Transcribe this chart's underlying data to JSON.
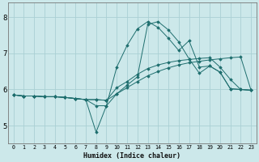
{
  "xlabel": "Humidex (Indice chaleur)",
  "bg_color": "#cce8ea",
  "grid_color": "#aad0d4",
  "line_color": "#1e6e6e",
  "xlim": [
    -0.5,
    23.5
  ],
  "ylim": [
    4.5,
    8.4
  ],
  "xticks": [
    0,
    1,
    2,
    3,
    4,
    5,
    6,
    7,
    8,
    9,
    10,
    11,
    12,
    13,
    14,
    15,
    16,
    17,
    18,
    19,
    20,
    21,
    22,
    23
  ],
  "yticks": [
    5,
    6,
    7,
    8
  ],
  "curve1_x": [
    0,
    1,
    2,
    3,
    4,
    5,
    6,
    7,
    8,
    9,
    10,
    11,
    12,
    13,
    14,
    15,
    16,
    17,
    18,
    19,
    20,
    21,
    22,
    23
  ],
  "curve1_y": [
    5.85,
    5.82,
    5.82,
    5.8,
    5.8,
    5.78,
    5.75,
    5.72,
    5.72,
    5.7,
    5.88,
    6.05,
    6.22,
    6.38,
    6.5,
    6.6,
    6.68,
    6.74,
    6.78,
    6.82,
    6.85,
    6.88,
    6.9,
    5.98
  ],
  "curve2_x": [
    0,
    1,
    2,
    3,
    4,
    5,
    6,
    7,
    8,
    9,
    10,
    11,
    12,
    13,
    14,
    15,
    16,
    17,
    18,
    19,
    20,
    21,
    22,
    23
  ],
  "curve2_y": [
    5.85,
    5.82,
    5.82,
    5.8,
    5.8,
    5.78,
    5.75,
    5.72,
    5.72,
    5.7,
    6.05,
    6.22,
    6.42,
    6.58,
    6.68,
    6.75,
    6.8,
    6.83,
    6.86,
    6.88,
    6.62,
    6.28,
    6.0,
    5.98
  ],
  "curve3_x": [
    0,
    1,
    2,
    3,
    4,
    5,
    6,
    7,
    8,
    9,
    10,
    11,
    12,
    13,
    14,
    15,
    16,
    17,
    18,
    19,
    20,
    21,
    22,
    23
  ],
  "curve3_y": [
    5.85,
    5.82,
    5.82,
    5.8,
    5.8,
    5.78,
    5.75,
    5.72,
    4.82,
    5.55,
    6.62,
    7.22,
    7.68,
    7.88,
    7.72,
    7.42,
    7.08,
    7.35,
    6.62,
    6.65,
    6.48,
    6.02,
    6.0,
    5.98
  ],
  "curve4_x": [
    0,
    1,
    2,
    3,
    4,
    5,
    6,
    7,
    8,
    9,
    10,
    11,
    12,
    13,
    14,
    15,
    16,
    17,
    18,
    19,
    20,
    21,
    22,
    23
  ],
  "curve4_y": [
    5.85,
    5.82,
    5.82,
    5.8,
    5.8,
    5.78,
    5.75,
    5.72,
    5.55,
    5.55,
    5.88,
    6.12,
    6.35,
    7.8,
    7.88,
    7.65,
    7.32,
    6.85,
    6.45,
    6.65,
    6.48,
    6.02,
    6.0,
    5.98
  ]
}
